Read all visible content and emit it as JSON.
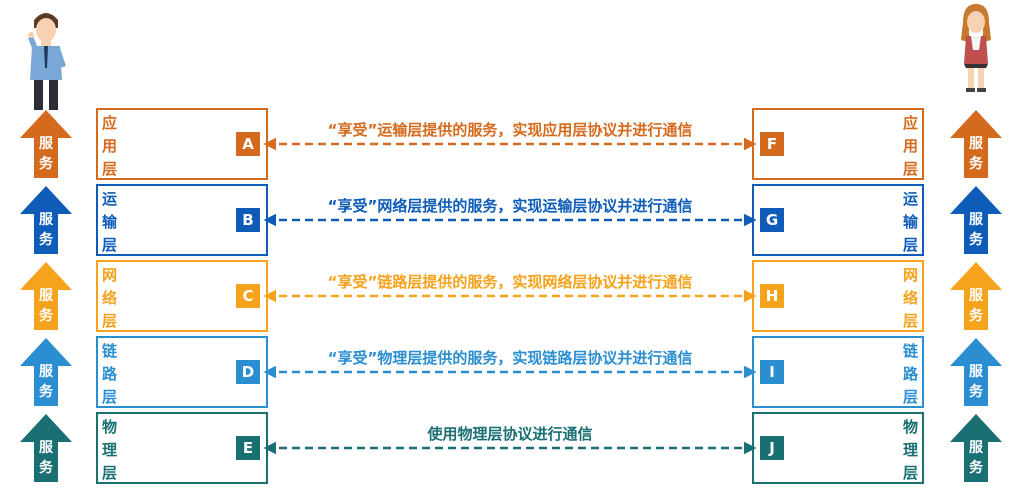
{
  "layers": [
    {
      "name": "应用层",
      "left_letter": "A",
      "right_letter": "F",
      "label": "“享受”运输层提供的服务，实现应用层协议并进行通信",
      "color": "#d46a1e"
    },
    {
      "name": "运输层",
      "left_letter": "B",
      "right_letter": "G",
      "label": "“享受”网络层提供的服务，实现运输层协议并进行通信",
      "color": "#0e5cb8"
    },
    {
      "name": "网络层",
      "left_letter": "C",
      "right_letter": "H",
      "label": "“享受”链路层提供的服务，实现网络层协议并进行通信",
      "color": "#f5a21c"
    },
    {
      "name": "链路层",
      "left_letter": "D",
      "right_letter": "I",
      "label": "“享受”物理层提供的服务，实现链路层协议并进行通信",
      "color": "#2b8ed0"
    },
    {
      "name": "物理层",
      "left_letter": "E",
      "right_letter": "J",
      "label": "使用物理层协议进行通信",
      "color": "#1a6f73"
    }
  ],
  "arrow_text": "服务",
  "people": {
    "left": "man-icon",
    "right": "woman-icon"
  }
}
